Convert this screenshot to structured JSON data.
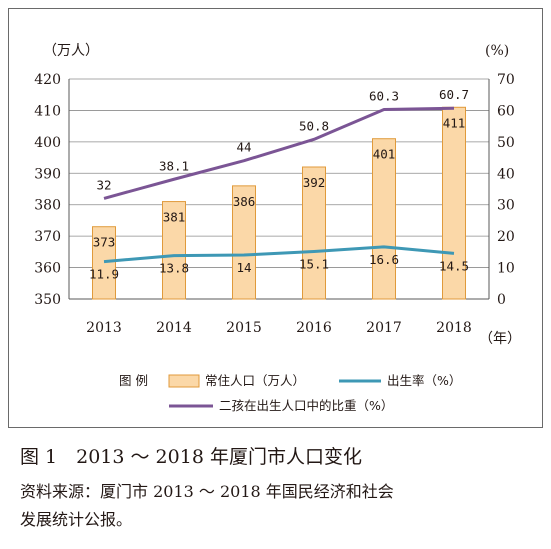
{
  "chart_data": {
    "type": "bar",
    "categories": [
      "2013",
      "2014",
      "2015",
      "2016",
      "2017",
      "2018"
    ],
    "series": [
      {
        "name": "常住人口（万人）",
        "type": "bar",
        "axis": "left",
        "color": "#fbd8a8",
        "stroke": "#e09a3b",
        "values": [
          373,
          381,
          386,
          392,
          401,
          411
        ]
      },
      {
        "name": "出生率（%）",
        "type": "line",
        "axis": "right",
        "color": "#3e98b5",
        "values": [
          11.9,
          13.8,
          14,
          15.1,
          16.6,
          14.5
        ]
      },
      {
        "name": "二孩在出生人口中的比重（%）",
        "type": "line",
        "axis": "right",
        "color": "#7b5595",
        "values": [
          32,
          38.1,
          44,
          50.8,
          60.3,
          60.7
        ]
      }
    ],
    "value_labels": {
      "bar": [
        "373",
        "381",
        "386",
        "392",
        "401",
        "411"
      ],
      "birth": [
        "11.9",
        "13.8",
        "14",
        "15.1",
        "16.6",
        "14.5"
      ],
      "second": [
        "32",
        "38.1",
        "44",
        "50.8",
        "60.3",
        "60.7"
      ]
    },
    "ylabel_left": "（万人）",
    "ylabel_right": "(%)",
    "xunit": "（年）",
    "ylim_left": [
      350,
      420
    ],
    "ylim_right": [
      0,
      70
    ],
    "left_ticks": [
      "350",
      "360",
      "370",
      "380",
      "390",
      "400",
      "410",
      "420"
    ],
    "right_ticks": [
      "0",
      "10",
      "20",
      "30",
      "40",
      "50",
      "60",
      "70"
    ],
    "grid": "horizontal",
    "legend_title": "图 例",
    "legend_position": "bottom"
  },
  "caption": "图 1　2013 ～ 2018 年厦门市人口变化",
  "source_line1": "资料来源：厦门市 2013 ～ 2018 年国民经济和社会",
  "source_line2": "发展统计公报。"
}
